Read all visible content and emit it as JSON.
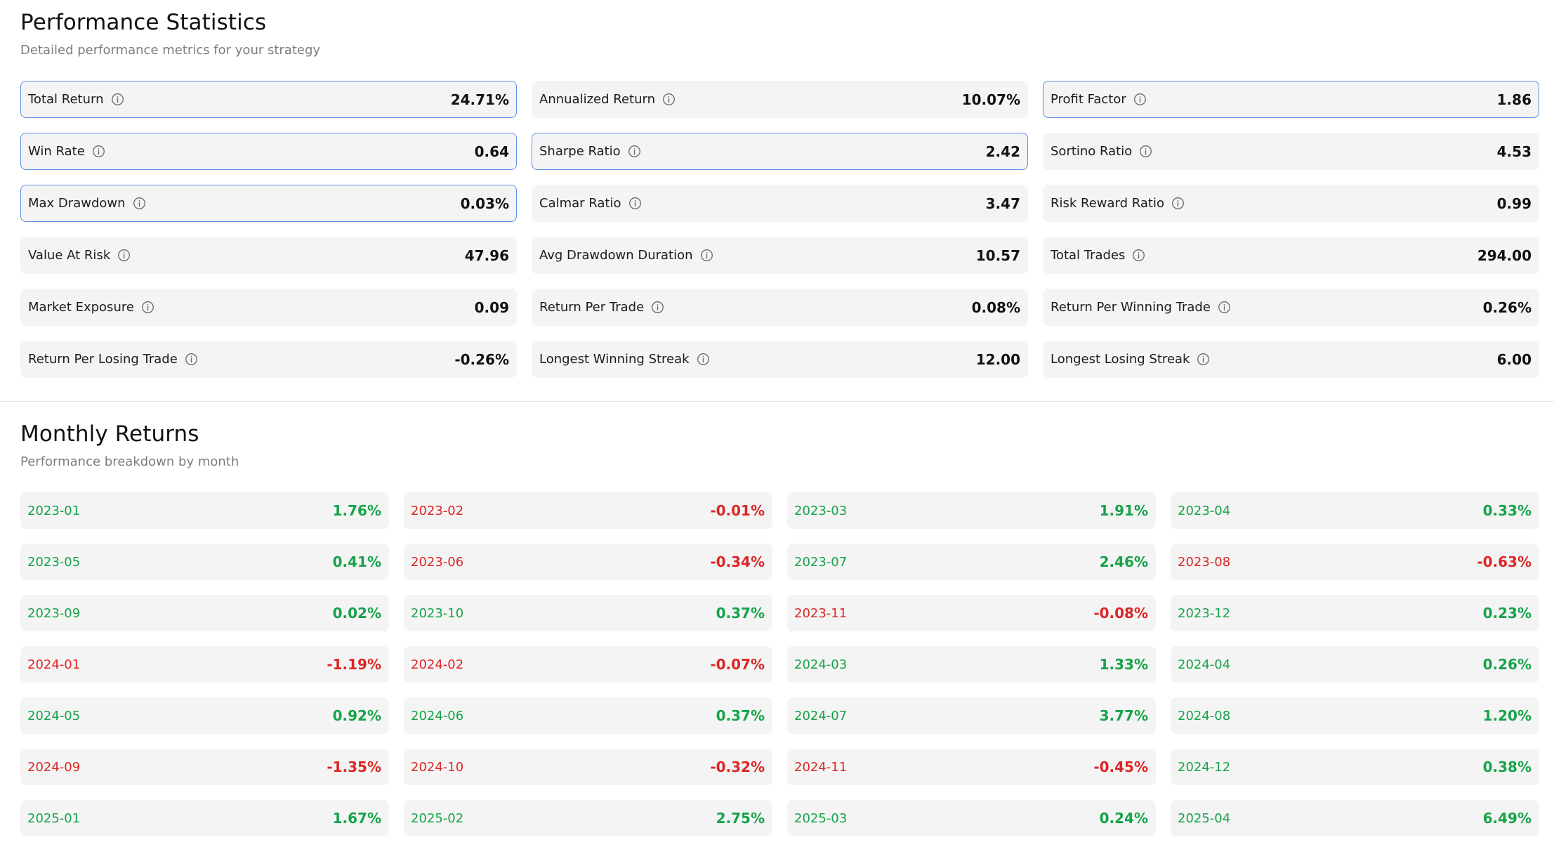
{
  "performance": {
    "title": "Performance Statistics",
    "subtitle": "Detailed performance metrics for your strategy",
    "stats": [
      {
        "label": "Total Return",
        "value": "24.71%",
        "highlighted": true
      },
      {
        "label": "Annualized Return",
        "value": "10.07%",
        "highlighted": false
      },
      {
        "label": "Profit Factor",
        "value": "1.86",
        "highlighted": true
      },
      {
        "label": "Win Rate",
        "value": "0.64",
        "highlighted": true
      },
      {
        "label": "Sharpe Ratio",
        "value": "2.42",
        "highlighted": true
      },
      {
        "label": "Sortino Ratio",
        "value": "4.53",
        "highlighted": false
      },
      {
        "label": "Max Drawdown",
        "value": "0.03%",
        "highlighted": true
      },
      {
        "label": "Calmar Ratio",
        "value": "3.47",
        "highlighted": false
      },
      {
        "label": "Risk Reward Ratio",
        "value": "0.99",
        "highlighted": false
      },
      {
        "label": "Value At Risk",
        "value": "47.96",
        "highlighted": false
      },
      {
        "label": "Avg Drawdown Duration",
        "value": "10.57",
        "highlighted": false
      },
      {
        "label": "Total Trades",
        "value": "294.00",
        "highlighted": false
      },
      {
        "label": "Market Exposure",
        "value": "0.09",
        "highlighted": false
      },
      {
        "label": "Return Per Trade",
        "value": "0.08%",
        "highlighted": false
      },
      {
        "label": "Return Per Winning Trade",
        "value": "0.26%",
        "highlighted": false
      },
      {
        "label": "Return Per Losing Trade",
        "value": "-0.26%",
        "highlighted": false
      },
      {
        "label": "Longest Winning Streak",
        "value": "12.00",
        "highlighted": false
      },
      {
        "label": "Longest Losing Streak",
        "value": "6.00",
        "highlighted": false
      }
    ]
  },
  "monthly": {
    "title": "Monthly Returns",
    "subtitle": "Performance breakdown by month",
    "months": [
      {
        "month": "2023-01",
        "value": "1.76%",
        "positive": true
      },
      {
        "month": "2023-02",
        "value": "-0.01%",
        "positive": false
      },
      {
        "month": "2023-03",
        "value": "1.91%",
        "positive": true
      },
      {
        "month": "2023-04",
        "value": "0.33%",
        "positive": true
      },
      {
        "month": "2023-05",
        "value": "0.41%",
        "positive": true
      },
      {
        "month": "2023-06",
        "value": "-0.34%",
        "positive": false
      },
      {
        "month": "2023-07",
        "value": "2.46%",
        "positive": true
      },
      {
        "month": "2023-08",
        "value": "-0.63%",
        "positive": false
      },
      {
        "month": "2023-09",
        "value": "0.02%",
        "positive": true
      },
      {
        "month": "2023-10",
        "value": "0.37%",
        "positive": true
      },
      {
        "month": "2023-11",
        "value": "-0.08%",
        "positive": false
      },
      {
        "month": "2023-12",
        "value": "0.23%",
        "positive": true
      },
      {
        "month": "2024-01",
        "value": "-1.19%",
        "positive": false
      },
      {
        "month": "2024-02",
        "value": "-0.07%",
        "positive": false
      },
      {
        "month": "2024-03",
        "value": "1.33%",
        "positive": true
      },
      {
        "month": "2024-04",
        "value": "0.26%",
        "positive": true
      },
      {
        "month": "2024-05",
        "value": "0.92%",
        "positive": true
      },
      {
        "month": "2024-06",
        "value": "0.37%",
        "positive": true
      },
      {
        "month": "2024-07",
        "value": "3.77%",
        "positive": true
      },
      {
        "month": "2024-08",
        "value": "1.20%",
        "positive": true
      },
      {
        "month": "2024-09",
        "value": "-1.35%",
        "positive": false
      },
      {
        "month": "2024-10",
        "value": "-0.32%",
        "positive": false
      },
      {
        "month": "2024-11",
        "value": "-0.45%",
        "positive": false
      },
      {
        "month": "2024-12",
        "value": "0.38%",
        "positive": true
      },
      {
        "month": "2025-01",
        "value": "1.67%",
        "positive": true
      },
      {
        "month": "2025-02",
        "value": "2.75%",
        "positive": true
      },
      {
        "month": "2025-03",
        "value": "0.24%",
        "positive": true
      },
      {
        "month": "2025-04",
        "value": "6.49%",
        "positive": true
      }
    ]
  },
  "colors": {
    "positive": "#16a34a",
    "negative": "#dc2626",
    "highlight_border": "#5b8ee6",
    "card_bg": "#f4f4f4"
  },
  "icons": {
    "info": "info-icon"
  }
}
